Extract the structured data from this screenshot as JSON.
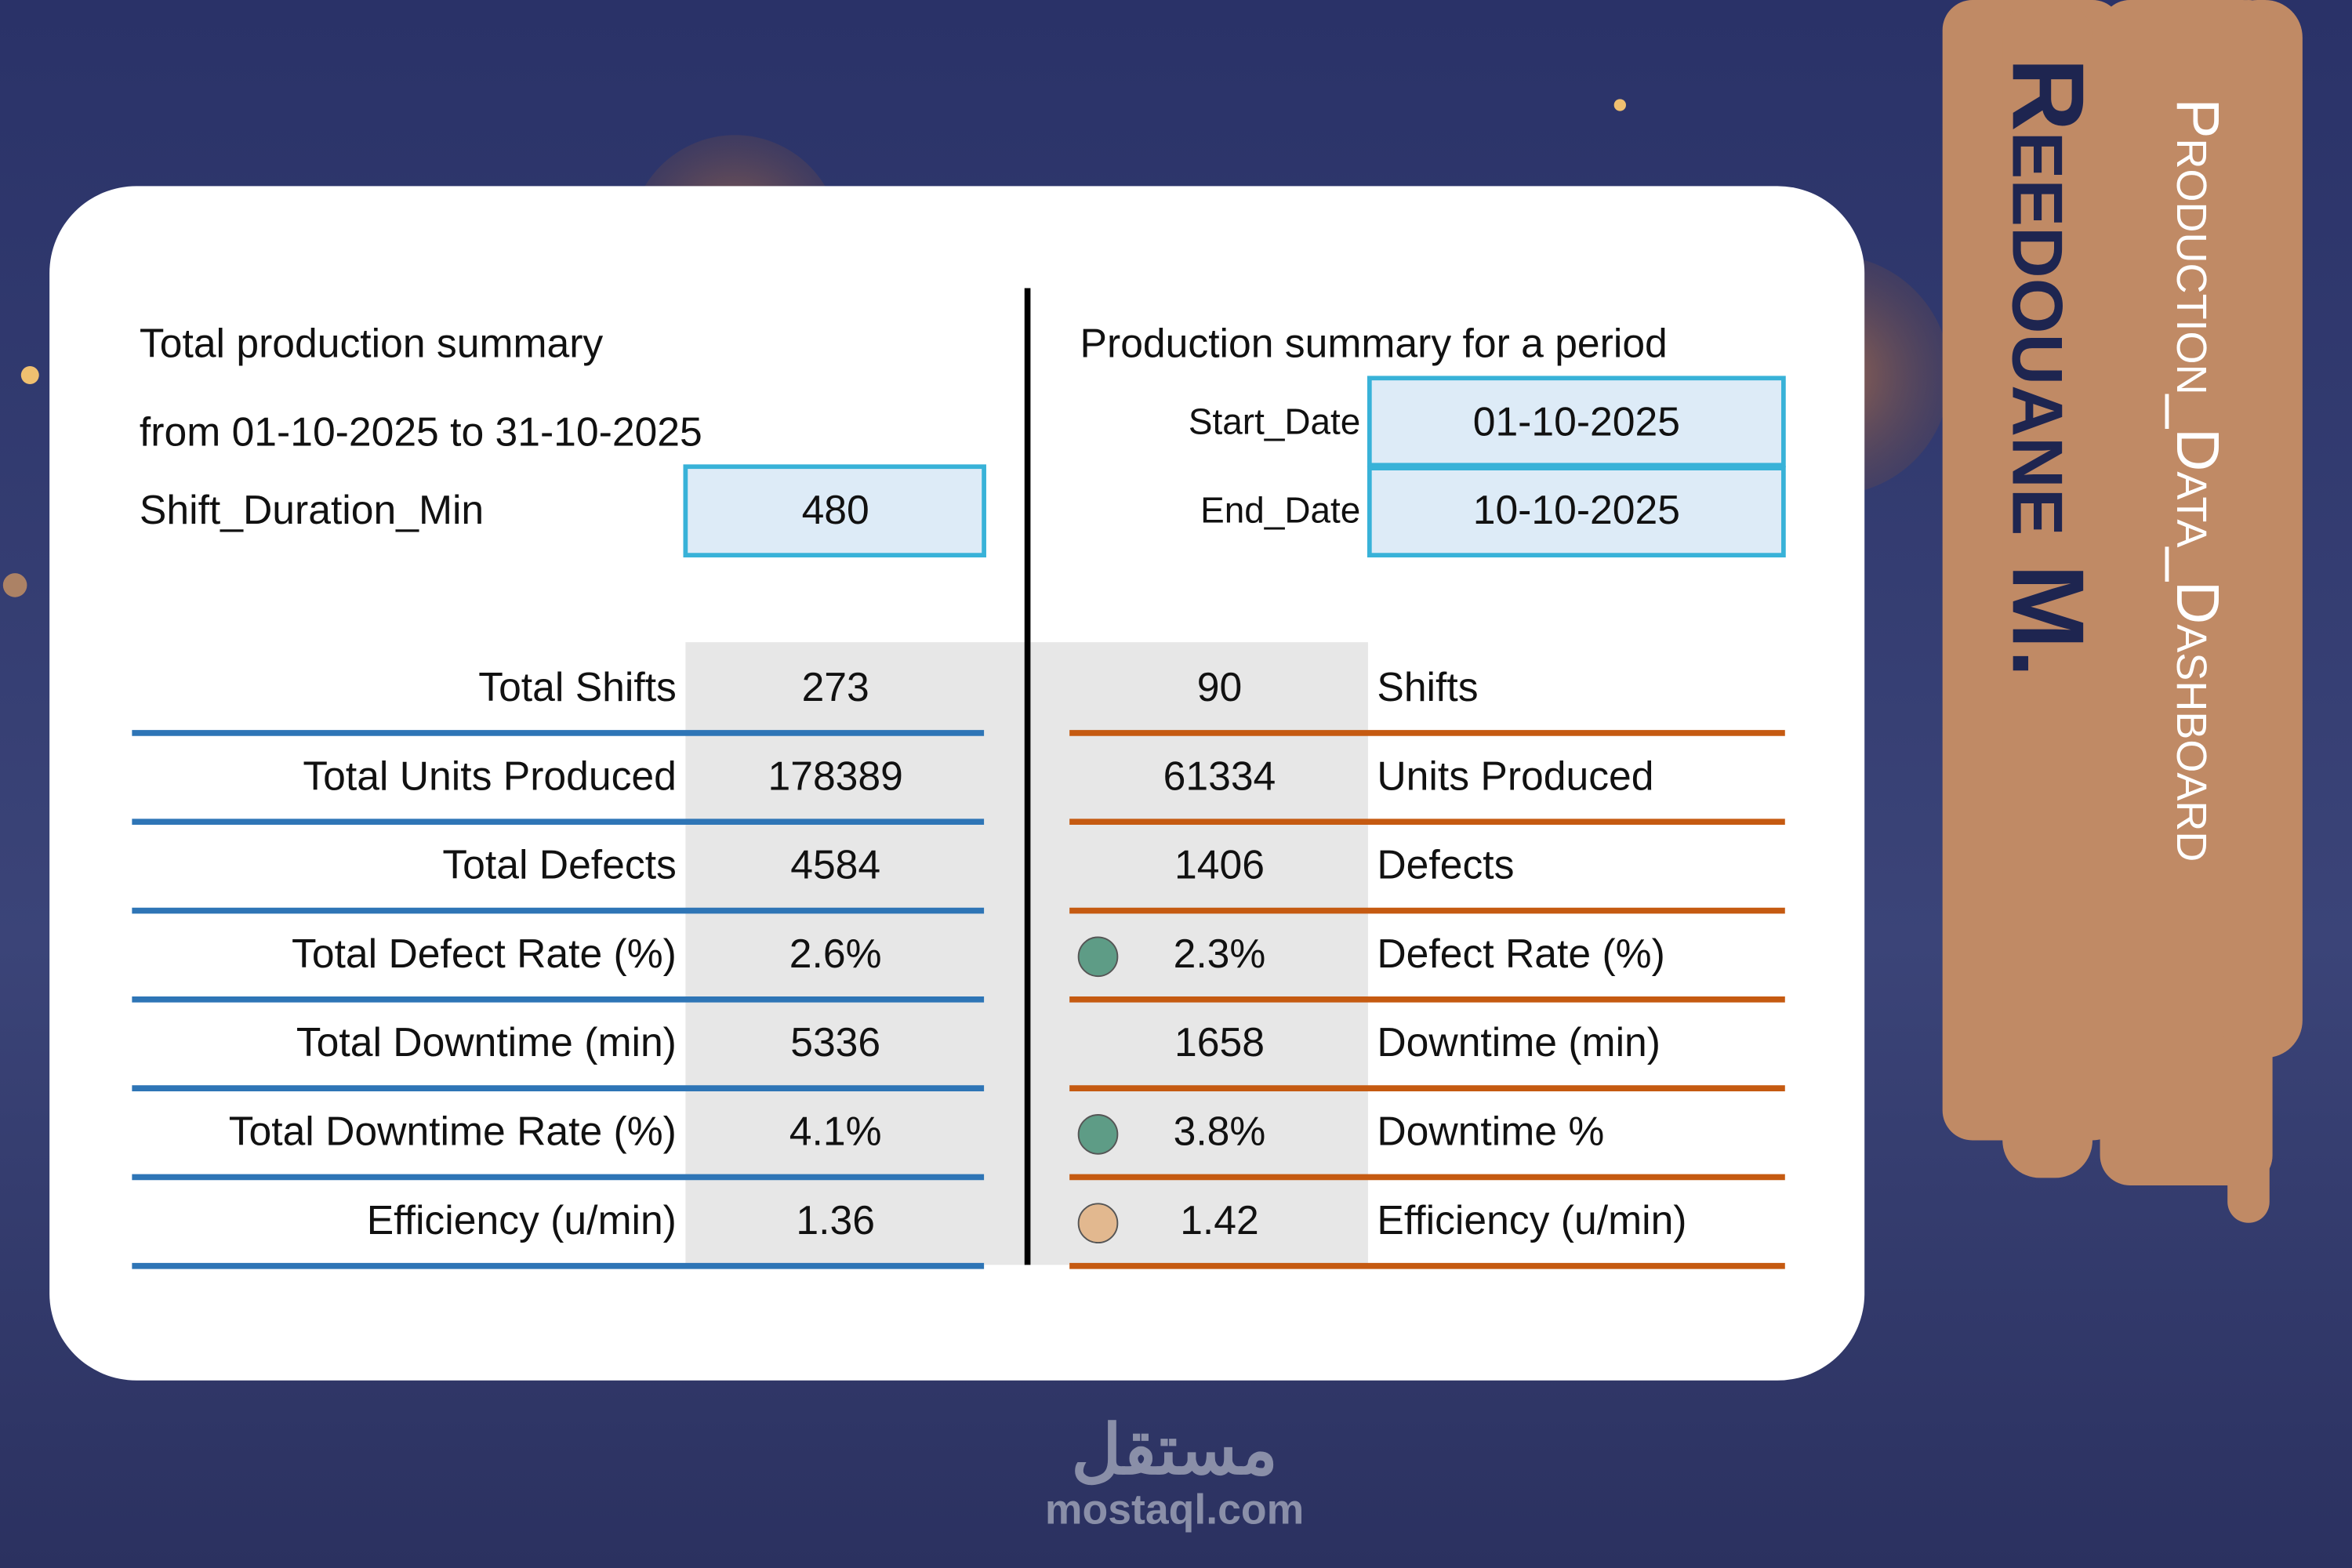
{
  "banner": {
    "title": "Production_Data_Dashboard",
    "author": "Reedouane M."
  },
  "total_summary": {
    "title": "Total production summary",
    "period": "from 01-10-2025 to 31-10-2025",
    "shift_duration_label": "Shift_Duration_Min",
    "shift_duration_value": "480",
    "rows": [
      {
        "label": "Total Shifts",
        "value": "273"
      },
      {
        "label": "Total Units Produced",
        "value": "178389"
      },
      {
        "label": "Total Defects",
        "value": "4584"
      },
      {
        "label": "Total Defect Rate (%)",
        "value": "2.6%"
      },
      {
        "label": "Total Downtime (min)",
        "value": "5336"
      },
      {
        "label": "Total Downtime Rate (%)",
        "value": "4.1%"
      },
      {
        "label": "Efficiency (u/min)",
        "value": "1.36"
      }
    ]
  },
  "period_summary": {
    "title": "Production summary for a period",
    "start_date_label": "Start_Date",
    "start_date": "01-10-2025",
    "end_date_label": "End_Date",
    "end_date": "10-10-2025",
    "rows": [
      {
        "value": "90",
        "label": "Shifts"
      },
      {
        "value": "61334",
        "label": "Units Produced"
      },
      {
        "value": "1406",
        "label": "Defects"
      },
      {
        "value": "2.3%",
        "label": "Defect Rate (%)",
        "indicator_color": "#5e9c86"
      },
      {
        "value": "1658",
        "label": "Downtime (min)"
      },
      {
        "value": "3.8%",
        "label": "Downtime %",
        "indicator_color": "#5e9c86"
      },
      {
        "value": "1.42",
        "label": "Efficiency (u/min)",
        "indicator_color": "#e2b88f"
      }
    ]
  },
  "watermark": {
    "arabic": "مستقل",
    "site": "mostaql.com"
  }
}
